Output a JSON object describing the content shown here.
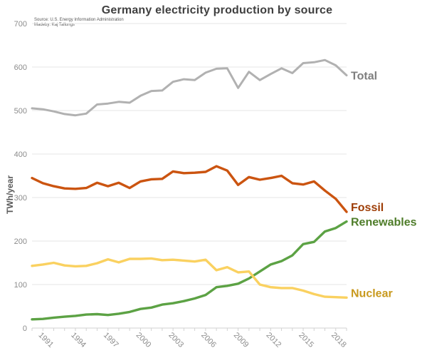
{
  "title": "Germany electricity production by source",
  "source_note": {
    "line1": "Source: U.S. Energy Information Administration",
    "line2": "Madeby: Kaj Tallungs"
  },
  "y_axis": {
    "label": "TWh/year",
    "ticks": [
      0,
      100,
      200,
      300,
      400,
      500,
      600,
      700
    ]
  },
  "x_axis": {
    "tick_labels": [
      1991,
      1994,
      1997,
      2000,
      2003,
      2006,
      2009,
      2012,
      2015,
      2018
    ]
  },
  "colors": {
    "title": "#404040",
    "source_text": "#595959",
    "gridline": "#e4e4e4",
    "axis_line": "#d2d2d2",
    "tick_text": "#8c8c8c"
  },
  "chart_data": {
    "type": "line",
    "title": "Germany electricity production by source",
    "xlabel": "",
    "ylabel": "TWh/year",
    "ylim": [
      0,
      700
    ],
    "grid": true,
    "legend_position": "right-end-of-line",
    "x": [
      1990,
      1991,
      1992,
      1993,
      1994,
      1995,
      1996,
      1997,
      1998,
      1999,
      2000,
      2001,
      2002,
      2003,
      2004,
      2005,
      2006,
      2007,
      2008,
      2009,
      2010,
      2011,
      2012,
      2013,
      2014,
      2015,
      2016,
      2017,
      2018,
      2019
    ],
    "series": [
      {
        "name": "Total",
        "line_color": "#b1b1b1",
        "label_color": "#7f7f7f",
        "values": [
          505,
          503,
          498,
          492,
          489,
          493,
          514,
          516,
          520,
          518,
          534,
          545,
          546,
          566,
          572,
          570,
          587,
          596,
          597,
          552,
          589,
          570,
          584,
          597,
          586,
          609,
          611,
          616,
          604,
          581
        ]
      },
      {
        "name": "Fossil",
        "line_color": "#cb5410",
        "label_color": "#9e3d06",
        "values": [
          345,
          333,
          326,
          321,
          320,
          322,
          334,
          326,
          334,
          322,
          337,
          342,
          343,
          360,
          356,
          357,
          359,
          372,
          362,
          329,
          347,
          341,
          345,
          350,
          333,
          330,
          337,
          316,
          297,
          267
        ]
      },
      {
        "name": "Renewables",
        "line_color": "#5ca244",
        "label_color": "#4f7d2a",
        "values": [
          20,
          21,
          24,
          26,
          28,
          31,
          32,
          30,
          33,
          37,
          44,
          47,
          54,
          57,
          62,
          68,
          76,
          94,
          97,
          102,
          114,
          130,
          146,
          154,
          167,
          193,
          198,
          222,
          230,
          245
        ]
      },
      {
        "name": "Nuclear",
        "line_color": "#fad160",
        "label_color": "#c8991d",
        "values": [
          143,
          146,
          150,
          144,
          142,
          143,
          149,
          158,
          151,
          159,
          159,
          160,
          156,
          157,
          155,
          153,
          157,
          133,
          140,
          128,
          130,
          100,
          94,
          92,
          92,
          86,
          78,
          72,
          71,
          70
        ]
      }
    ]
  }
}
